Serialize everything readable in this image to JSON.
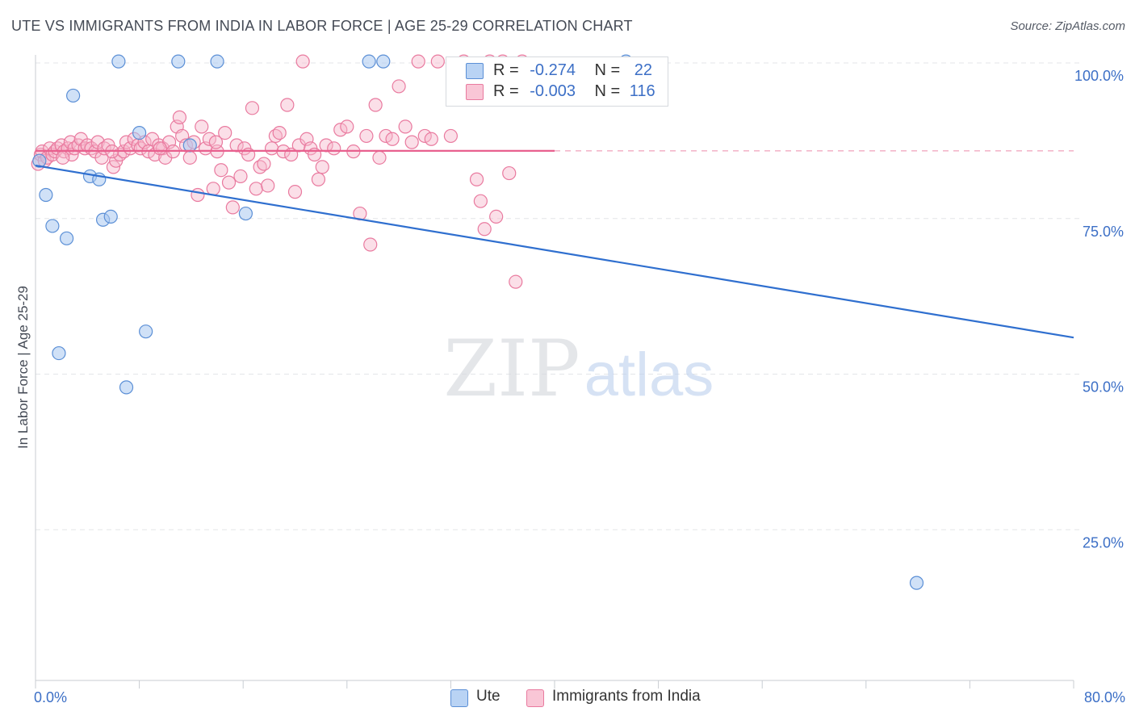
{
  "title": "UTE VS IMMIGRANTS FROM INDIA IN LABOR FORCE | AGE 25-29 CORRELATION CHART",
  "source": "Source: ZipAtlas.com",
  "watermark": {
    "zip": "ZIP",
    "atlas": "atlas"
  },
  "legend": {
    "rows": [
      {
        "r_label": "R =",
        "r_value": "-0.274",
        "n_label": "N =",
        "n_value": "22"
      },
      {
        "r_label": "R =",
        "r_value": "-0.003",
        "n_label": "N =",
        "n_value": "116"
      }
    ]
  },
  "bottom_legend": [
    "Ute",
    "Immigrants from India"
  ],
  "colors": {
    "ute_fill": "#a9c8f0",
    "ute_stroke": "#5b8fd6",
    "ute_line": "#2f6fcf",
    "india_fill": "#f7b8cc",
    "india_stroke": "#e97a9f",
    "india_line": "#e8608e",
    "axis_text": "#3c6fc6",
    "grid": "#e3e5e8"
  },
  "chart_data": {
    "type": "scatter",
    "title": "UTE VS IMMIGRANTS FROM INDIA IN LABOR FORCE | AGE 25-29 CORRELATION CHART",
    "xlabel": "",
    "ylabel": "In Labor Force | Age 25-29",
    "xlim": [
      0,
      80
    ],
    "ylim": [
      0,
      105
    ],
    "x_tick_labels": [
      "0.0%",
      "80.0%"
    ],
    "y_ticks": [
      25,
      50,
      75,
      100
    ],
    "y_tick_labels": [
      "25.0%",
      "50.0%",
      "75.0%",
      "100.0%"
    ],
    "grid": true,
    "series": [
      {
        "name": "Ute",
        "r": -0.274,
        "n": 22,
        "trend": {
          "x": [
            0,
            80
          ],
          "y": [
            84.0,
            55.5
          ],
          "extrapolate_to": 80
        },
        "points": [
          [
            0.3,
            84.5
          ],
          [
            0.8,
            79.0
          ],
          [
            1.3,
            74.0
          ],
          [
            1.8,
            53.5
          ],
          [
            2.4,
            72.0
          ],
          [
            2.9,
            95.0
          ],
          [
            4.2,
            82.0
          ],
          [
            4.9,
            81.5
          ],
          [
            5.2,
            75.0
          ],
          [
            5.8,
            75.5
          ],
          [
            6.4,
            100.5
          ],
          [
            7.0,
            48.0
          ],
          [
            8.0,
            89.0
          ],
          [
            8.5,
            57.0
          ],
          [
            11.0,
            100.5
          ],
          [
            11.9,
            87.0
          ],
          [
            14.0,
            100.5
          ],
          [
            16.2,
            76.0
          ],
          [
            25.7,
            100.5
          ],
          [
            26.8,
            100.5
          ],
          [
            45.5,
            100.5
          ],
          [
            67.9,
            16.5
          ]
        ]
      },
      {
        "name": "Immigrants from India",
        "r": -0.003,
        "n": 116,
        "trend": {
          "x": [
            0,
            40
          ],
          "y": [
            86.1,
            86.2
          ],
          "dashed_to": 80
        },
        "points": [
          [
            0.2,
            84.0
          ],
          [
            0.4,
            85.5
          ],
          [
            0.5,
            86.0
          ],
          [
            0.7,
            84.5
          ],
          [
            0.9,
            85.0
          ],
          [
            1.1,
            86.5
          ],
          [
            1.3,
            85.5
          ],
          [
            1.5,
            86.0
          ],
          [
            1.7,
            86.5
          ],
          [
            2.0,
            87.0
          ],
          [
            2.2,
            86.0
          ],
          [
            2.5,
            86.5
          ],
          [
            2.7,
            87.5
          ],
          [
            2.8,
            85.5
          ],
          [
            3.0,
            86.5
          ],
          [
            3.3,
            87.0
          ],
          [
            3.5,
            88.0
          ],
          [
            3.8,
            86.5
          ],
          [
            4.0,
            87.0
          ],
          [
            4.3,
            86.5
          ],
          [
            4.6,
            86.0
          ],
          [
            4.8,
            87.5
          ],
          [
            5.1,
            85.0
          ],
          [
            5.3,
            86.5
          ],
          [
            5.6,
            87.0
          ],
          [
            6.0,
            83.5
          ],
          [
            6.2,
            84.5
          ],
          [
            6.5,
            85.5
          ],
          [
            6.8,
            86.0
          ],
          [
            7.0,
            87.5
          ],
          [
            7.3,
            86.5
          ],
          [
            7.6,
            88.0
          ],
          [
            7.9,
            87.0
          ],
          [
            8.1,
            86.5
          ],
          [
            8.4,
            87.5
          ],
          [
            8.7,
            86.0
          ],
          [
            9.0,
            88.0
          ],
          [
            9.2,
            85.5
          ],
          [
            9.5,
            87.0
          ],
          [
            9.8,
            86.5
          ],
          [
            10.0,
            85.0
          ],
          [
            10.3,
            87.5
          ],
          [
            10.6,
            86.0
          ],
          [
            10.9,
            90.0
          ],
          [
            11.1,
            91.5
          ],
          [
            11.3,
            88.5
          ],
          [
            11.6,
            87.0
          ],
          [
            11.9,
            85.0
          ],
          [
            12.2,
            87.5
          ],
          [
            12.5,
            79.0
          ],
          [
            12.8,
            90.0
          ],
          [
            13.1,
            86.5
          ],
          [
            13.4,
            88.0
          ],
          [
            13.7,
            80.0
          ],
          [
            14.0,
            86.0
          ],
          [
            14.3,
            83.0
          ],
          [
            14.6,
            89.0
          ],
          [
            14.9,
            81.0
          ],
          [
            15.2,
            77.0
          ],
          [
            15.5,
            87.0
          ],
          [
            15.8,
            82.0
          ],
          [
            16.1,
            86.5
          ],
          [
            16.4,
            85.5
          ],
          [
            16.7,
            93.0
          ],
          [
            17.0,
            80.0
          ],
          [
            17.3,
            83.5
          ],
          [
            17.6,
            84.0
          ],
          [
            17.9,
            80.5
          ],
          [
            18.2,
            86.5
          ],
          [
            18.5,
            88.5
          ],
          [
            18.8,
            89.0
          ],
          [
            19.1,
            86.0
          ],
          [
            19.4,
            93.5
          ],
          [
            19.7,
            85.5
          ],
          [
            20.0,
            79.5
          ],
          [
            20.3,
            87.0
          ],
          [
            20.6,
            100.5
          ],
          [
            20.9,
            88.0
          ],
          [
            21.2,
            86.5
          ],
          [
            21.5,
            85.5
          ],
          [
            21.8,
            81.5
          ],
          [
            22.1,
            83.5
          ],
          [
            22.4,
            87.0
          ],
          [
            23.0,
            86.5
          ],
          [
            23.5,
            89.5
          ],
          [
            24.0,
            90.0
          ],
          [
            24.5,
            86.0
          ],
          [
            25.0,
            76.0
          ],
          [
            25.5,
            88.5
          ],
          [
            25.8,
            71.0
          ],
          [
            26.2,
            93.5
          ],
          [
            26.5,
            85.0
          ],
          [
            27.0,
            88.5
          ],
          [
            27.5,
            88.0
          ],
          [
            28.0,
            96.5
          ],
          [
            28.5,
            90.0
          ],
          [
            29.0,
            87.5
          ],
          [
            29.5,
            100.5
          ],
          [
            30.0,
            88.5
          ],
          [
            30.5,
            88.0
          ],
          [
            31.0,
            100.5
          ],
          [
            32.0,
            88.5
          ],
          [
            33.0,
            100.5
          ],
          [
            34.0,
            81.5
          ],
          [
            34.3,
            78.0
          ],
          [
            34.6,
            73.5
          ],
          [
            35.0,
            100.5
          ],
          [
            35.5,
            75.5
          ],
          [
            36.0,
            100.5
          ],
          [
            36.5,
            82.5
          ],
          [
            37.0,
            65.0
          ],
          [
            37.5,
            100.5
          ],
          [
            2.1,
            85.0
          ],
          [
            5.9,
            86.0
          ],
          [
            9.6,
            86.5
          ],
          [
            13.9,
            87.5
          ]
        ]
      }
    ]
  }
}
